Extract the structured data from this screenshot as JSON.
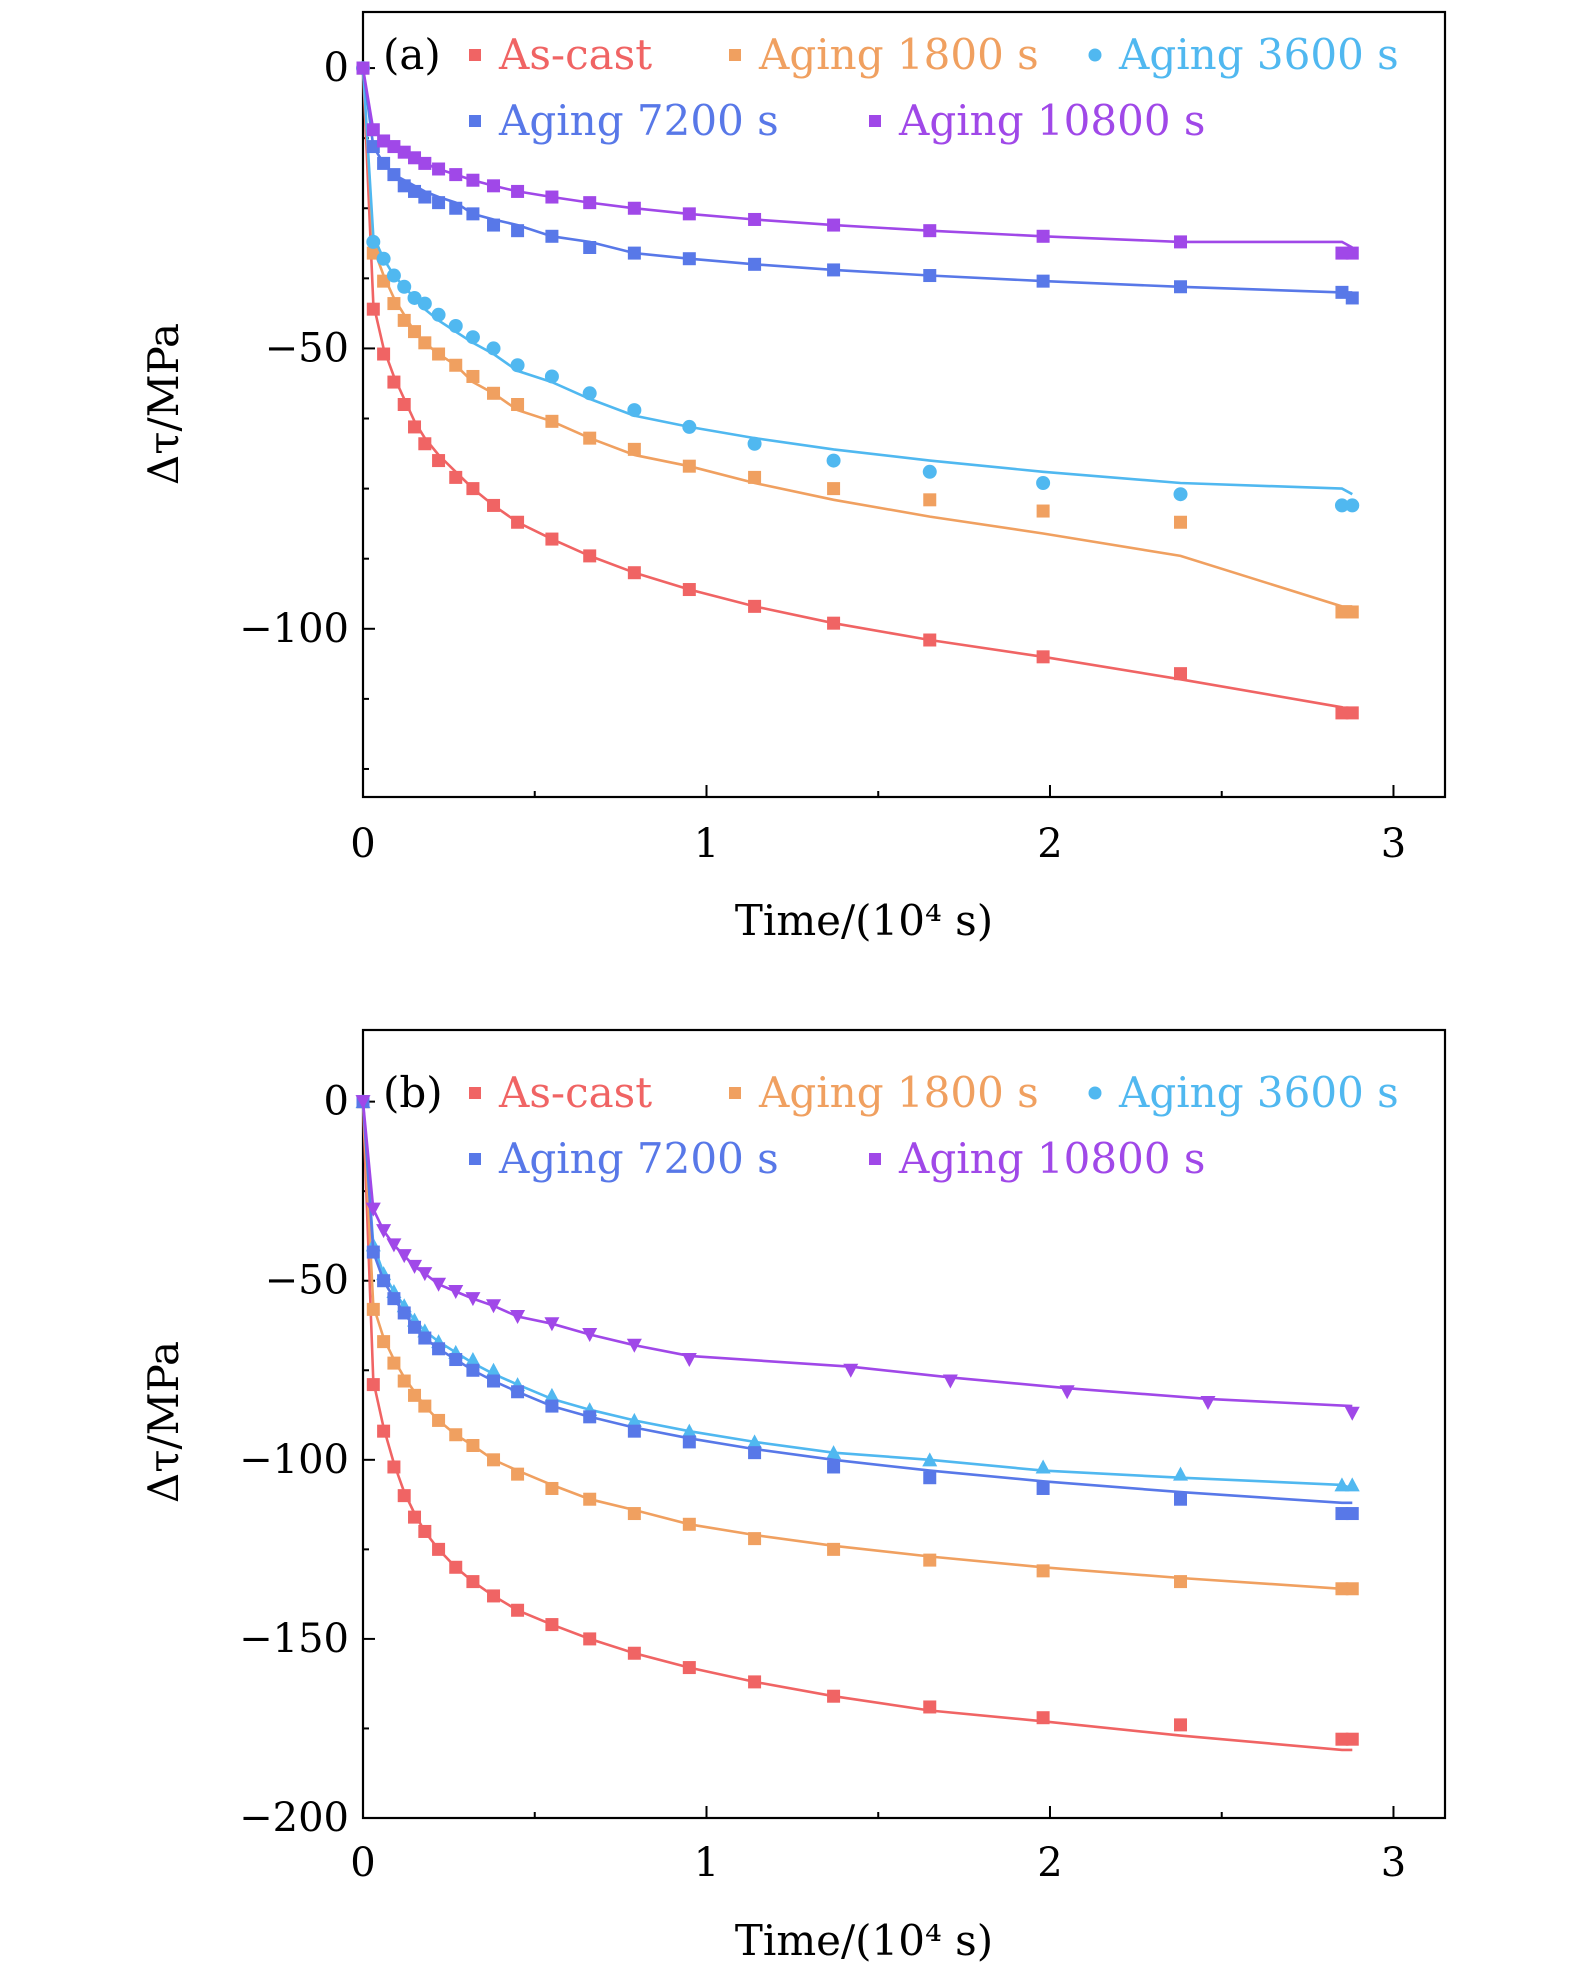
{
  "chart_data": [
    {
      "type": "scatter",
      "panel_label": "(a)",
      "xlabel": "Time/(10⁴ s)",
      "ylabel": "Δτ/MPa",
      "xlim": [
        0,
        3.15
      ],
      "ylim": [
        -130,
        10
      ],
      "xticks": [
        0,
        1,
        2,
        3
      ],
      "yticks": [
        0,
        -50,
        -100
      ],
      "xtick_labels": [
        "0",
        "1",
        "2",
        "3"
      ],
      "ytick_labels": [
        "0",
        "−50",
        "−100"
      ],
      "legend_placement": "top (inside, two rows)",
      "grid": false,
      "series": [
        {
          "name": "As-cast",
          "color": "#f06464",
          "marker": "square",
          "x": [
            0,
            0.03,
            0.06,
            0.09,
            0.12,
            0.15,
            0.18,
            0.22,
            0.27,
            0.32,
            0.38,
            0.45,
            0.55,
            0.66,
            0.79,
            0.95,
            1.14,
            1.37,
            1.65,
            1.98,
            2.38,
            2.85,
            2.88
          ],
          "y": [
            0,
            -43,
            -51,
            -56,
            -60,
            -64,
            -67,
            -70,
            -73,
            -75,
            -78,
            -81,
            -84,
            -87,
            -90,
            -93,
            -96,
            -99,
            -102,
            -105,
            -108,
            -115,
            -115
          ],
          "fit_y": [
            0,
            -42,
            -50,
            -55,
            -59,
            -63,
            -66,
            -69,
            -72,
            -75,
            -78,
            -81,
            -84,
            -87,
            -90,
            -93,
            -96,
            -99,
            -102,
            -105,
            -109,
            -114,
            -115
          ]
        },
        {
          "name": "Aging 1800 s",
          "color": "#f0a060",
          "marker": "square",
          "x": [
            0,
            0.03,
            0.06,
            0.09,
            0.12,
            0.15,
            0.18,
            0.22,
            0.27,
            0.32,
            0.38,
            0.45,
            0.55,
            0.66,
            0.79,
            0.95,
            1.14,
            1.37,
            1.65,
            1.98,
            2.38,
            2.85,
            2.88
          ],
          "y": [
            0,
            -33,
            -38,
            -42,
            -45,
            -47,
            -49,
            -51,
            -53,
            -55,
            -58,
            -60,
            -63,
            -66,
            -68,
            -71,
            -73,
            -75,
            -77,
            -79,
            -81,
            -97,
            -97
          ],
          "fit_y": [
            0,
            -32,
            -37,
            -41,
            -44,
            -47,
            -49,
            -51,
            -53,
            -56,
            -58,
            -61,
            -63,
            -66,
            -69,
            -71,
            -74,
            -77,
            -80,
            -83,
            -87,
            -96,
            -96
          ]
        },
        {
          "name": "Aging 3600 s",
          "color": "#50b8f0",
          "marker": "circle",
          "x": [
            0,
            0.03,
            0.06,
            0.09,
            0.12,
            0.15,
            0.18,
            0.22,
            0.27,
            0.32,
            0.38,
            0.45,
            0.55,
            0.66,
            0.79,
            0.95,
            1.14,
            1.37,
            1.65,
            1.98,
            2.38,
            2.85,
            2.88
          ],
          "y": [
            0,
            -31,
            -34,
            -37,
            -39,
            -41,
            -42,
            -44,
            -46,
            -48,
            -50,
            -53,
            -55,
            -58,
            -61,
            -64,
            -67,
            -70,
            -72,
            -74,
            -76,
            -78,
            -78
          ],
          "fit_y": [
            0,
            -30,
            -34,
            -37,
            -39,
            -41,
            -43,
            -45,
            -47,
            -49,
            -51,
            -54,
            -56,
            -59,
            -62,
            -64,
            -66,
            -68,
            -70,
            -72,
            -74,
            -75,
            -76
          ]
        },
        {
          "name": "Aging 7200 s",
          "color": "#5878e8",
          "marker": "square",
          "x": [
            0,
            0.03,
            0.06,
            0.09,
            0.12,
            0.15,
            0.18,
            0.22,
            0.27,
            0.32,
            0.38,
            0.45,
            0.55,
            0.66,
            0.79,
            0.95,
            1.14,
            1.37,
            1.65,
            1.98,
            2.38,
            2.85,
            2.88
          ],
          "y": [
            0,
            -14,
            -17,
            -19,
            -21,
            -22,
            -23,
            -24,
            -25,
            -26,
            -28,
            -29,
            -30,
            -32,
            -33,
            -34,
            -35,
            -36,
            -37,
            -38,
            -39,
            -40,
            -41
          ],
          "fit_y": [
            0,
            -14,
            -17,
            -19,
            -20,
            -21,
            -22,
            -23,
            -24,
            -26,
            -27,
            -28,
            -30,
            -31,
            -33,
            -34,
            -35,
            -36,
            -37,
            -38,
            -39,
            -40,
            -40
          ]
        },
        {
          "name": "Aging 10800 s",
          "color": "#a048e8",
          "marker": "square",
          "x": [
            0,
            0.03,
            0.06,
            0.09,
            0.12,
            0.15,
            0.18,
            0.22,
            0.27,
            0.32,
            0.38,
            0.45,
            0.55,
            0.66,
            0.79,
            0.95,
            1.14,
            1.37,
            1.65,
            1.98,
            2.38,
            2.85,
            2.88
          ],
          "y": [
            0,
            -11,
            -13,
            -14,
            -15,
            -16,
            -17,
            -18,
            -19,
            -20,
            -21,
            -22,
            -23,
            -24,
            -25,
            -26,
            -27,
            -28,
            -29,
            -30,
            -31,
            -33,
            -33
          ],
          "fit_y": [
            0,
            -11,
            -13,
            -14,
            -15,
            -16,
            -17,
            -18,
            -19,
            -20,
            -21,
            -22,
            -23,
            -24,
            -25,
            -26,
            -27,
            -28,
            -29,
            -30,
            -31,
            -31,
            -32
          ]
        }
      ]
    },
    {
      "type": "scatter",
      "panel_label": "(b)",
      "xlabel": "Time/(10⁴ s)",
      "ylabel": "Δτ/MPa",
      "xlim": [
        0,
        3.15
      ],
      "ylim": [
        -200,
        20
      ],
      "xticks": [
        0,
        1,
        2,
        3
      ],
      "yticks": [
        0,
        -50,
        -100,
        -150,
        -200
      ],
      "xtick_labels": [
        "0",
        "1",
        "2",
        "3"
      ],
      "ytick_labels": [
        "0",
        "−50",
        "−100",
        "−150",
        "−200"
      ],
      "legend_placement": "top (inside, two rows)",
      "grid": false,
      "series": [
        {
          "name": "As-cast",
          "color": "#f06464",
          "marker": "square",
          "x": [
            0,
            0.03,
            0.06,
            0.09,
            0.12,
            0.15,
            0.18,
            0.22,
            0.27,
            0.32,
            0.38,
            0.45,
            0.55,
            0.66,
            0.79,
            0.95,
            1.14,
            1.37,
            1.65,
            1.98,
            2.38,
            2.85,
            2.88
          ],
          "y": [
            0,
            -79,
            -92,
            -102,
            -110,
            -116,
            -120,
            -125,
            -130,
            -134,
            -138,
            -142,
            -146,
            -150,
            -154,
            -158,
            -162,
            -166,
            -169,
            -172,
            -174,
            -178,
            -178
          ],
          "fit_y": [
            0,
            -78,
            -91,
            -101,
            -109,
            -115,
            -120,
            -125,
            -130,
            -134,
            -138,
            -142,
            -146,
            -150,
            -154,
            -158,
            -162,
            -166,
            -170,
            -173,
            -177,
            -181,
            -181
          ]
        },
        {
          "name": "Aging 1800 s",
          "color": "#f0a060",
          "marker": "square",
          "x": [
            0,
            0.03,
            0.06,
            0.09,
            0.12,
            0.15,
            0.18,
            0.22,
            0.27,
            0.32,
            0.38,
            0.45,
            0.55,
            0.66,
            0.79,
            0.95,
            1.14,
            1.37,
            1.65,
            1.98,
            2.38,
            2.85,
            2.88
          ],
          "y": [
            0,
            -58,
            -67,
            -73,
            -78,
            -82,
            -85,
            -89,
            -93,
            -96,
            -100,
            -104,
            -108,
            -111,
            -115,
            -118,
            -122,
            -125,
            -128,
            -131,
            -134,
            -136,
            -136
          ],
          "fit_y": [
            0,
            -57,
            -66,
            -72,
            -77,
            -81,
            -85,
            -89,
            -93,
            -96,
            -100,
            -103,
            -107,
            -111,
            -114,
            -118,
            -121,
            -124,
            -127,
            -130,
            -133,
            -136,
            -136
          ]
        },
        {
          "name": "Aging 3600 s",
          "color": "#50b8f0",
          "marker": "triangle-up",
          "x": [
            0,
            0.03,
            0.06,
            0.09,
            0.12,
            0.15,
            0.18,
            0.22,
            0.27,
            0.32,
            0.38,
            0.45,
            0.55,
            0.66,
            0.79,
            0.95,
            1.14,
            1.37,
            1.65,
            1.98,
            2.38,
            2.85,
            2.88
          ],
          "y": [
            0,
            -40,
            -48,
            -53,
            -57,
            -61,
            -64,
            -67,
            -70,
            -72,
            -75,
            -79,
            -82,
            -86,
            -89,
            -92,
            -95,
            -98,
            -100,
            -102,
            -104,
            -107,
            -107
          ],
          "fit_y": [
            0,
            -40,
            -48,
            -53,
            -57,
            -61,
            -64,
            -67,
            -70,
            -73,
            -76,
            -79,
            -83,
            -86,
            -89,
            -92,
            -95,
            -98,
            -100,
            -103,
            -105,
            -107,
            -108
          ]
        },
        {
          "name": "Aging 7200 s",
          "color": "#5878e8",
          "marker": "square",
          "x": [
            0,
            0.03,
            0.06,
            0.09,
            0.12,
            0.15,
            0.18,
            0.22,
            0.27,
            0.32,
            0.38,
            0.45,
            0.55,
            0.66,
            0.79,
            0.95,
            1.14,
            1.37,
            1.65,
            1.98,
            2.38,
            2.85,
            2.88
          ],
          "y": [
            0,
            -42,
            -50,
            -55,
            -59,
            -63,
            -66,
            -69,
            -72,
            -75,
            -78,
            -81,
            -85,
            -88,
            -92,
            -95,
            -98,
            -102,
            -105,
            -108,
            -111,
            -115,
            -115
          ],
          "fit_y": [
            0,
            -42,
            -50,
            -55,
            -59,
            -63,
            -66,
            -69,
            -72,
            -75,
            -78,
            -81,
            -85,
            -88,
            -91,
            -94,
            -97,
            -100,
            -103,
            -106,
            -109,
            -112,
            -112
          ]
        },
        {
          "name": "Aging 10800 s",
          "color": "#a048e8",
          "marker": "triangle-down",
          "x": [
            0,
            0.03,
            0.06,
            0.09,
            0.12,
            0.15,
            0.18,
            0.22,
            0.27,
            0.32,
            0.38,
            0.45,
            0.55,
            0.66,
            0.79,
            0.95,
            1.42,
            1.71,
            2.05,
            2.46,
            2.88
          ],
          "y": [
            0,
            -30,
            -36,
            -40,
            -43,
            -46,
            -48,
            -51,
            -53,
            -55,
            -57,
            -60,
            -62,
            -65,
            -68,
            -72,
            -75,
            -78,
            -81,
            -84,
            -87
          ],
          "fit_y": [
            0,
            -30,
            -36,
            -40,
            -43,
            -46,
            -48,
            -51,
            -53,
            -55,
            -57,
            -60,
            -62,
            -65,
            -68,
            -71,
            -74,
            -77,
            -80,
            -83,
            -85
          ]
        }
      ]
    }
  ]
}
